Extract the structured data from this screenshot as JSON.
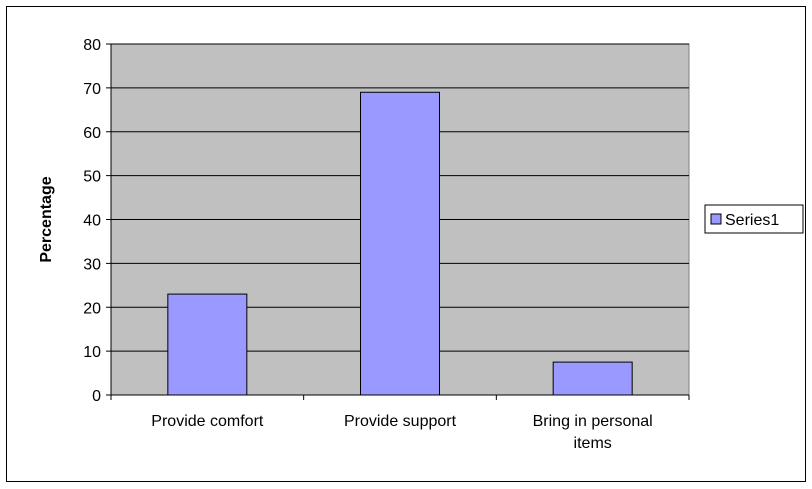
{
  "chart_data": {
    "type": "bar",
    "categories": [
      "Provide comfort",
      "Provide support",
      "Bring in personal items"
    ],
    "series": [
      {
        "name": "Series1",
        "values": [
          23,
          69,
          7.5
        ]
      }
    ],
    "ylabel": "Percentage",
    "xlabel": "",
    "ylim": [
      0,
      80
    ],
    "yticks": [
      0,
      10,
      20,
      30,
      40,
      50,
      60,
      70,
      80
    ],
    "grid": true,
    "legend": "right",
    "colors": {
      "plot_background": "#c0c0c0",
      "bar_fill": "#9999ff",
      "bar_stroke": "#000000",
      "grid": "#000000"
    }
  }
}
